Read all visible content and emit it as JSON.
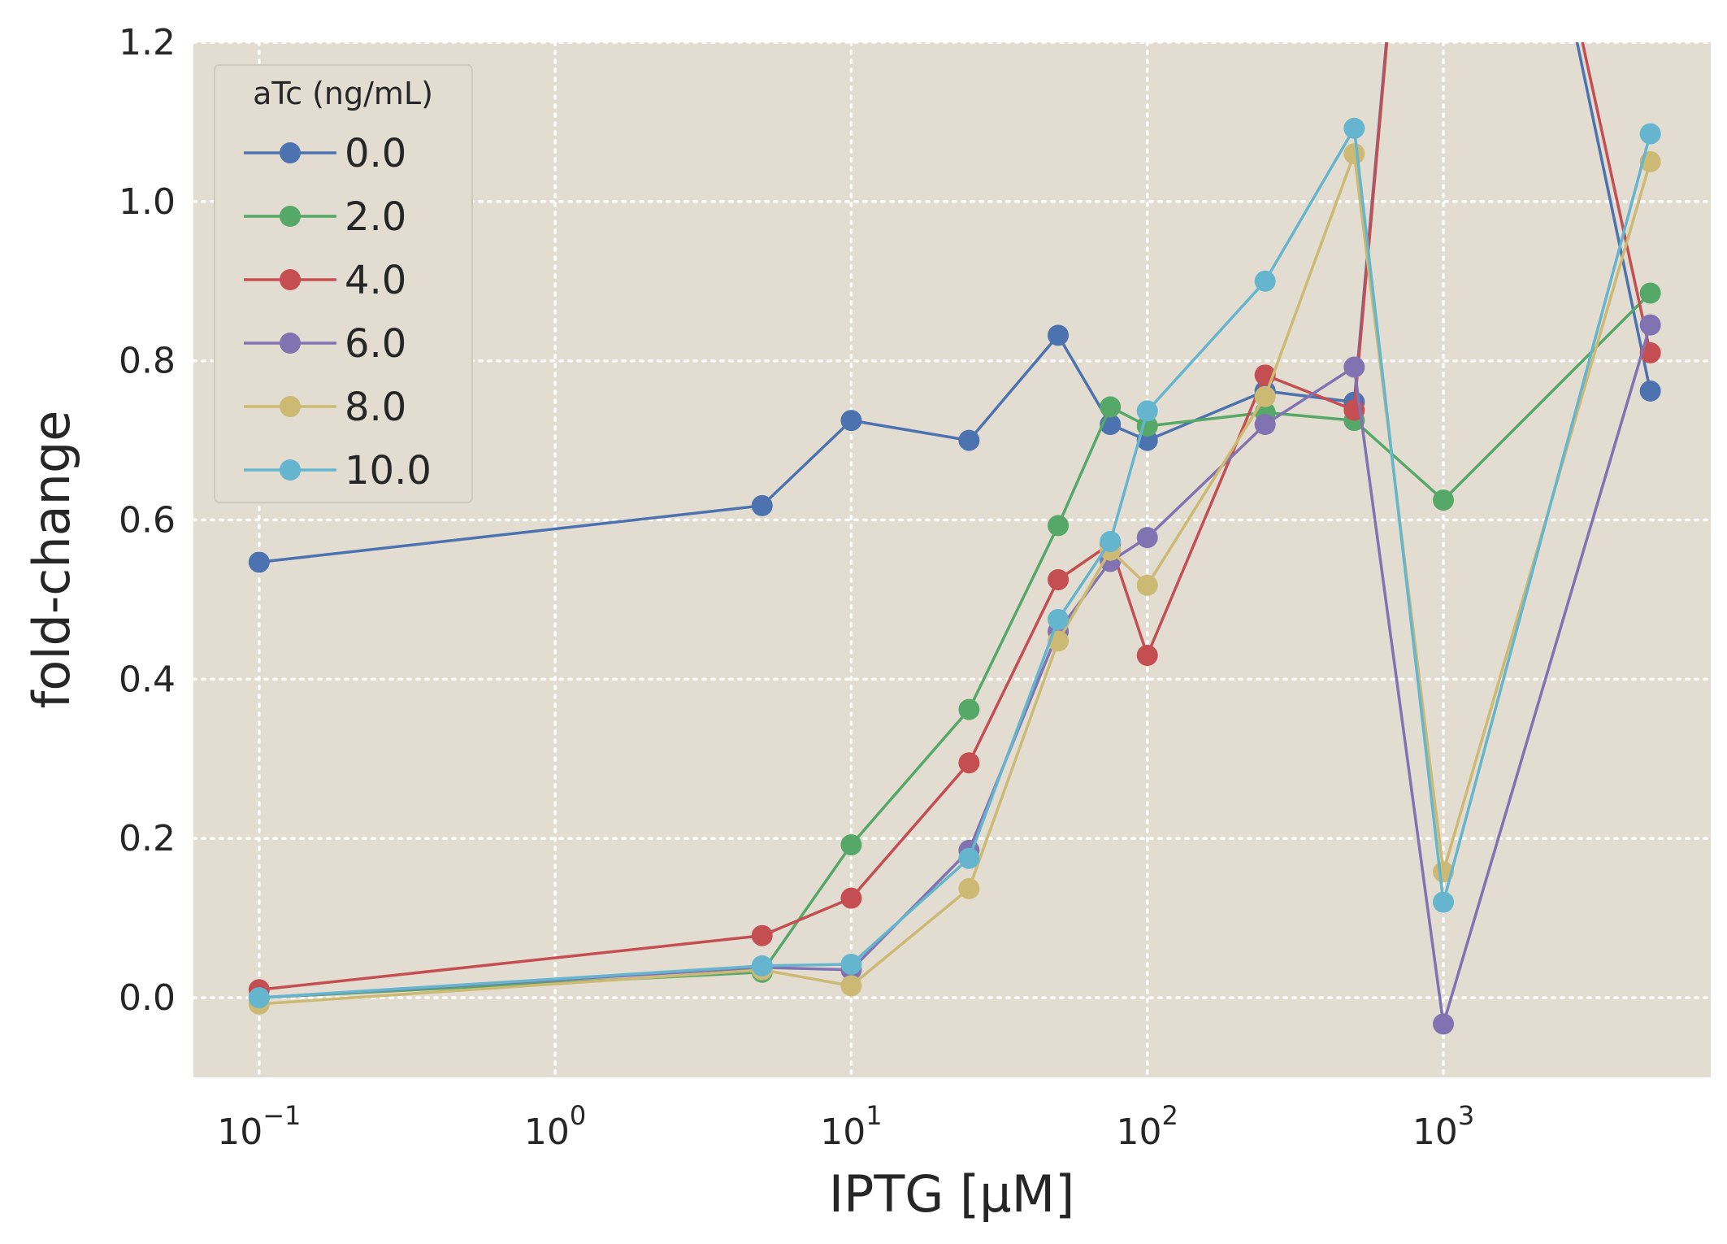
{
  "chart_data": {
    "type": "line",
    "xscale": "log",
    "xlabel": "IPTG [μM]",
    "ylabel": "fold-change",
    "xlim": [
      0.06,
      8000
    ],
    "ylim": [
      -0.1,
      1.2
    ],
    "yticks": [
      "0.0",
      "0.2",
      "0.4",
      "0.6",
      "0.8",
      "1.0",
      "1.2"
    ],
    "xticks": [
      {
        "base": "10",
        "exp": "−1"
      },
      {
        "base": "10",
        "exp": "0"
      },
      {
        "base": "10",
        "exp": "1"
      },
      {
        "base": "10",
        "exp": "2"
      },
      {
        "base": "10",
        "exp": "3"
      }
    ],
    "grid": true,
    "legend_position": "top-left",
    "legend_title": "aTc (ng/mL)",
    "background_color": "#E3DDD1",
    "x": [
      0.1,
      5,
      10,
      25,
      50,
      75,
      100,
      250,
      500,
      1000,
      5000
    ],
    "series": [
      {
        "name": "0.0",
        "color": "#4C72B0",
        "values": [
          0.547,
          0.618,
          0.725,
          0.7,
          0.832,
          0.72,
          0.7,
          0.762,
          0.748,
          2.0,
          0.762
        ]
      },
      {
        "name": "2.0",
        "color": "#55A868",
        "values": [
          0.0,
          0.032,
          0.192,
          0.362,
          0.593,
          0.742,
          0.718,
          0.735,
          0.725,
          0.625,
          0.885
        ]
      },
      {
        "name": "4.0",
        "color": "#C44E52",
        "values": [
          0.01,
          0.078,
          0.125,
          0.295,
          0.525,
          0.57,
          0.43,
          0.782,
          0.738,
          2.0,
          0.81
        ]
      },
      {
        "name": "6.0",
        "color": "#8172B2",
        "values": [
          0.0,
          0.038,
          0.035,
          0.185,
          0.46,
          0.548,
          0.578,
          0.72,
          0.792,
          -0.033,
          0.845
        ]
      },
      {
        "name": "8.0",
        "color": "#CCB974",
        "values": [
          -0.008,
          0.035,
          0.015,
          0.137,
          0.448,
          0.562,
          0.518,
          0.755,
          1.06,
          0.158,
          1.05
        ]
      },
      {
        "name": "10.0",
        "color": "#64B5CD",
        "values": [
          0.0,
          0.04,
          0.042,
          0.175,
          0.475,
          0.573,
          0.737,
          0.9,
          1.092,
          0.12,
          1.085
        ]
      }
    ]
  }
}
